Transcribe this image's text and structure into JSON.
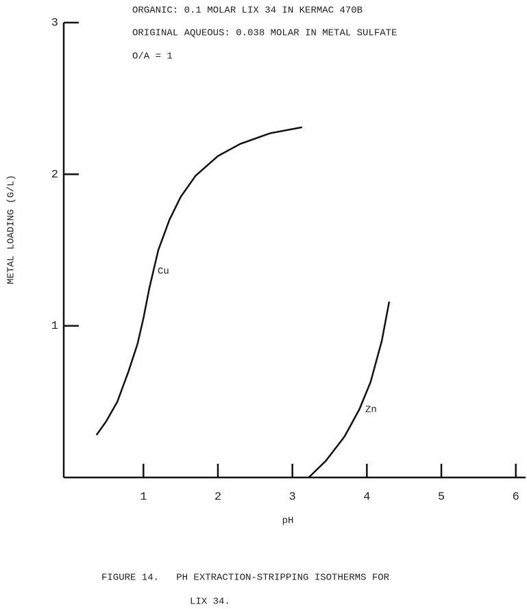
{
  "chart_data": {
    "type": "line",
    "annotations": [
      "ORGANIC: 0.1 MOLAR LIX 34 IN KERMAC 470B",
      "ORIGINAL AQUEOUS: 0.038 MOLAR IN METAL SULFATE",
      "O/A = 1"
    ],
    "x_label": "pH",
    "y_label": "METAL LOADING (G/L)",
    "caption": [
      "FIGURE 14.   PH EXTRACTION-STRIPPING ISOTHERMS FOR",
      "LIX 34."
    ],
    "xlim": [
      -0.07,
      6.15
    ],
    "ylim": [
      0,
      3
    ],
    "xticks": [
      1,
      2,
      3,
      4,
      5,
      6
    ],
    "yticks": [
      1,
      2,
      3
    ],
    "series": [
      {
        "name": "Cu",
        "color": "#111111",
        "x": [
          0.37,
          0.5,
          0.65,
          0.8,
          0.92,
          1.0,
          1.08,
          1.2,
          1.35,
          1.5,
          1.7,
          2.0,
          2.3,
          2.7,
          3.13
        ],
        "values": [
          0.28,
          0.37,
          0.5,
          0.7,
          0.88,
          1.05,
          1.25,
          1.5,
          1.7,
          1.85,
          1.99,
          2.12,
          2.2,
          2.27,
          2.31
        ]
      },
      {
        "name": "Zn",
        "color": "#111111",
        "x": [
          3.22,
          3.45,
          3.7,
          3.9,
          4.05,
          4.2,
          4.3
        ],
        "values": [
          0,
          0.11,
          0.27,
          0.45,
          0.63,
          0.9,
          1.16
        ]
      }
    ]
  }
}
